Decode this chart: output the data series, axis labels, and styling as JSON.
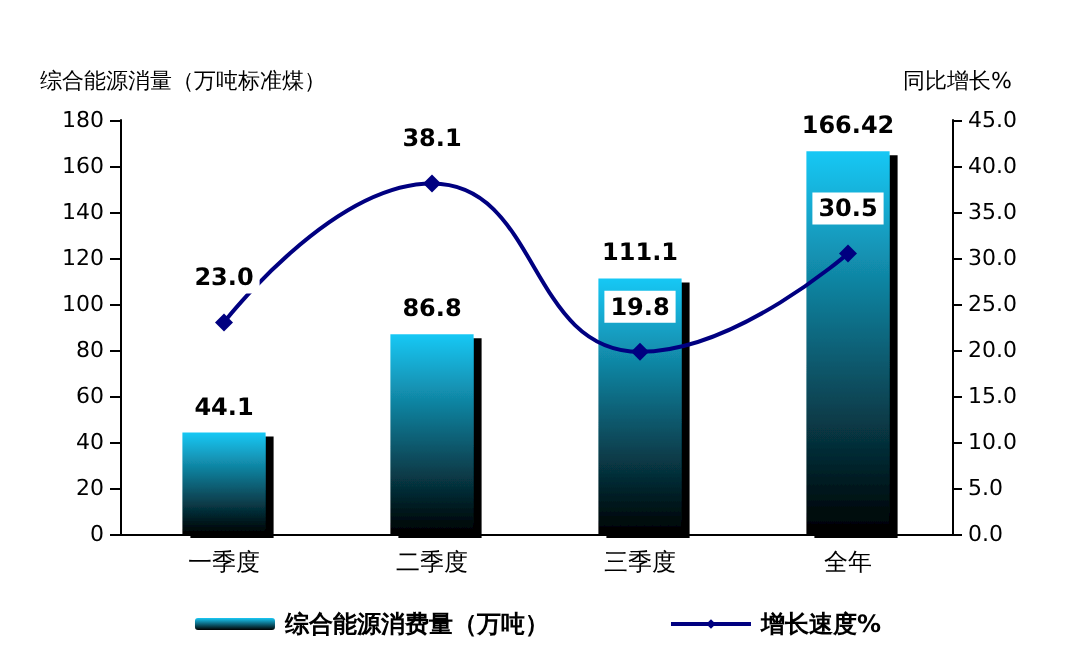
{
  "chart_data": {
    "type": "bar",
    "categories": [
      "一季度",
      "二季度",
      "三季度",
      "全年"
    ],
    "ylabel": "综合能源消量（万吨标准煤）",
    "y2label": "同比增长%",
    "ylim": [
      0,
      180
    ],
    "yticks": [
      0,
      20,
      40,
      60,
      80,
      100,
      120,
      140,
      160,
      180
    ],
    "y2lim": [
      0,
      45
    ],
    "y2ticks": [
      {
        "value": 0,
        "label": "0.0"
      },
      {
        "value": 5,
        "label": "5.0"
      },
      {
        "value": 10,
        "label": "10.0"
      },
      {
        "value": 15,
        "label": "15.0"
      },
      {
        "value": 20,
        "label": "20.0"
      },
      {
        "value": 25,
        "label": "25.0"
      },
      {
        "value": 30,
        "label": "30.0"
      },
      {
        "value": 35,
        "label": "35.0"
      },
      {
        "value": 40,
        "label": "40.0"
      },
      {
        "value": 45,
        "label": "45.0"
      }
    ],
    "series": [
      {
        "name": "综合能源消费量（万吨）",
        "color": "#19c8f5",
        "values": [
          44.1,
          86.8,
          111.1,
          166.42
        ],
        "value_labels": [
          "44.1",
          "86.8",
          "111.1",
          "166.42"
        ]
      },
      {
        "name": "增长速度%",
        "type": "line",
        "axis": "y2",
        "color": "#000080",
        "values": [
          23.0,
          38.1,
          19.8,
          30.5
        ],
        "value_labels": [
          "23.0",
          "38.1",
          "19.8",
          "30.5"
        ],
        "marker": "diamond"
      }
    ],
    "grid": false,
    "legend": "bottom"
  }
}
